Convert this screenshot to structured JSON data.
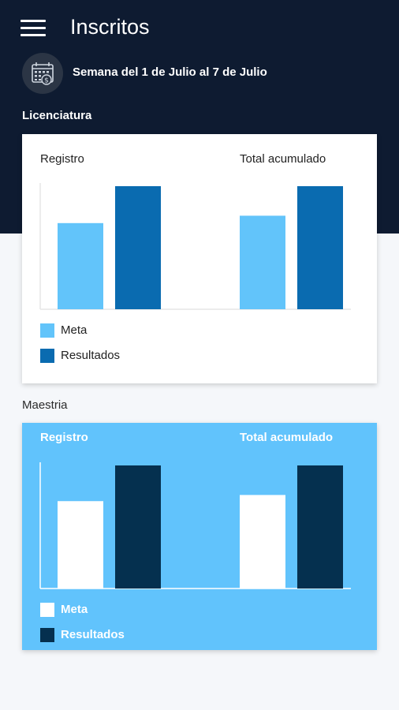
{
  "app": {
    "title": "Inscritos",
    "week_label": "Semana del 1 de Julio al 7 de Julio",
    "icons": {
      "menu": "hamburger-menu-icon",
      "calendar": "calendar-dollar-icon"
    }
  },
  "colors": {
    "header_bg": "#0e1b31",
    "page_bg": "#f5f7fa",
    "meta_light": "#62c4fa",
    "resultados_light": "#0a6bb0",
    "card2_bg": "#61c3fc",
    "meta_dark": "#ffffff",
    "resultados_dark": "#05304f"
  },
  "sections": [
    {
      "label": "Licenciatura",
      "left_title": "Registro",
      "right_title": "Total acumulado",
      "legend": [
        "Meta",
        "Resultados"
      ]
    },
    {
      "label": "Maestria",
      "left_title": "Registro",
      "right_title": "Total acumulado",
      "legend": [
        "Meta",
        "Resultados"
      ]
    }
  ],
  "chart_data": [
    {
      "type": "bar",
      "categories": [
        "Registro",
        "Total acumulado"
      ],
      "series": [
        {
          "name": "Meta",
          "values": [
            70,
            76
          ]
        },
        {
          "name": "Resultados",
          "values": [
            100,
            100
          ]
        }
      ],
      "ylim": [
        0,
        100
      ]
    },
    {
      "type": "bar",
      "categories": [
        "Registro",
        "Total acumulado"
      ],
      "series": [
        {
          "name": "Meta",
          "values": [
            71,
            76
          ]
        },
        {
          "name": "Resultados",
          "values": [
            100,
            100
          ]
        }
      ],
      "ylim": [
        0,
        100
      ]
    }
  ]
}
